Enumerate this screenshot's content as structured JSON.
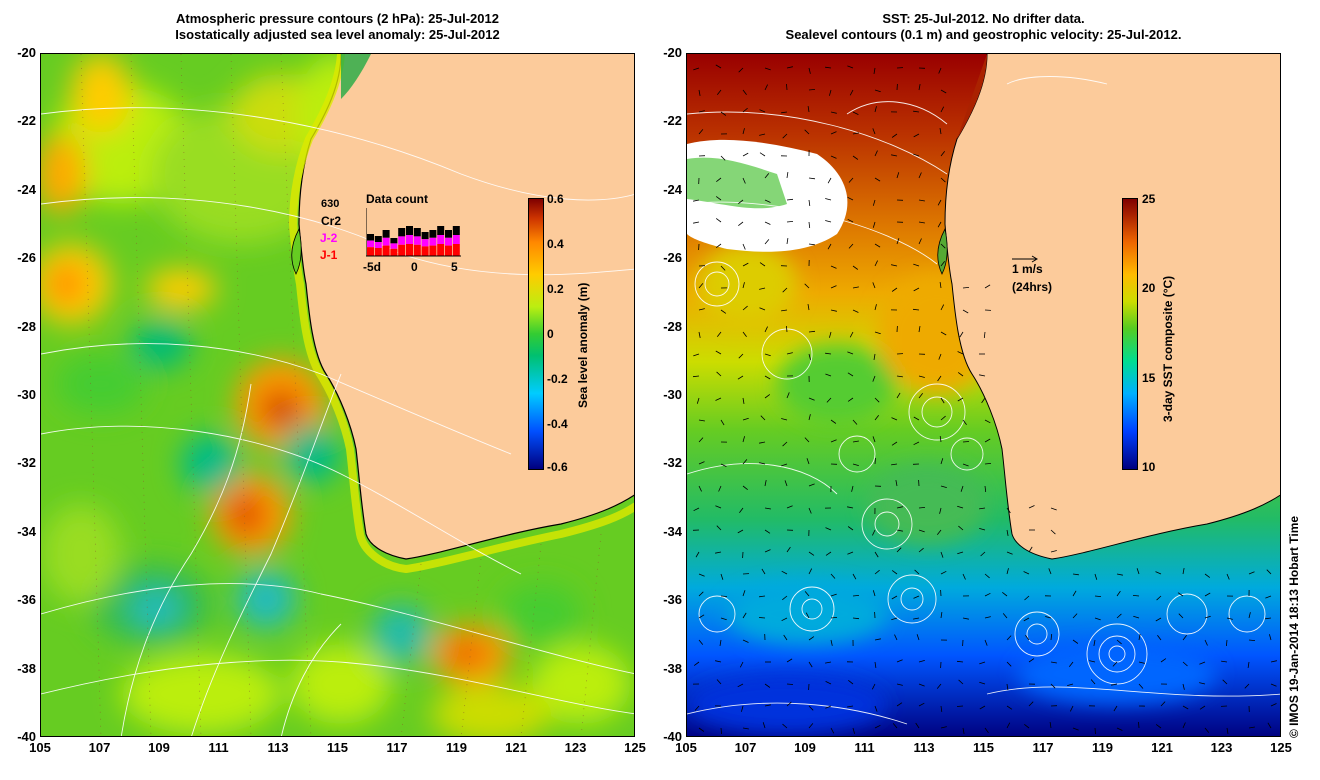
{
  "left_panel": {
    "title_line1": "Atmospheric pressure contours (2 hPa): 25-Jul-2012",
    "title_line2": "Isostatically adjusted sea level anomaly: 25-Jul-2012",
    "colorbar_title": "Sea level anomaly (m)",
    "colorbar_ticks": [
      "0.6",
      "0.4",
      "0.2",
      "0",
      "-0.2",
      "-0.4",
      "-0.6"
    ],
    "inset": {
      "title": "Data count",
      "max_label": "630",
      "series": [
        {
          "name": "Cr2",
          "color": "#000000"
        },
        {
          "name": "J-2",
          "color": "#ff00ff"
        },
        {
          "name": "J-1",
          "color": "#ff0000"
        }
      ],
      "x_labels": [
        "-5d",
        "0",
        "5"
      ]
    }
  },
  "right_panel": {
    "title_line1": "SST: 25-Jul-2012. No drifter data.",
    "title_line2": "Sealevel contours (0.1 m) and geostrophic velocity: 25-Jul-2012.",
    "colorbar_title": "3-day SST composite (°C)",
    "colorbar_ticks": [
      "25",
      "20",
      "15",
      "10"
    ],
    "velocity_key_label": "1 m/s",
    "velocity_key_sublabel": "(24hrs)"
  },
  "axes": {
    "y_ticks": [
      "-20",
      "-22",
      "-24",
      "-26",
      "-28",
      "-30",
      "-32",
      "-34",
      "-36",
      "-38",
      "-40"
    ],
    "x_ticks": [
      "105",
      "107",
      "109",
      "111",
      "113",
      "115",
      "117",
      "119",
      "121",
      "123",
      "125"
    ]
  },
  "credit": "© IMOS 19-Jan-2014 18:13 Hobart Time",
  "colors": {
    "land": "#fccb9b",
    "sla_colormap": [
      "#00007f",
      "#0050ff",
      "#00ccff",
      "#00c070",
      "#33cc33",
      "#bbee11",
      "#ffcc00",
      "#ff8800",
      "#cc3300",
      "#7f0000"
    ],
    "sst_colormap": [
      "#00007f",
      "#0040ff",
      "#00b0ff",
      "#00dd90",
      "#55cc22",
      "#ccdd00",
      "#ffbb00",
      "#ee6600",
      "#aa2200",
      "#7f0000"
    ]
  }
}
